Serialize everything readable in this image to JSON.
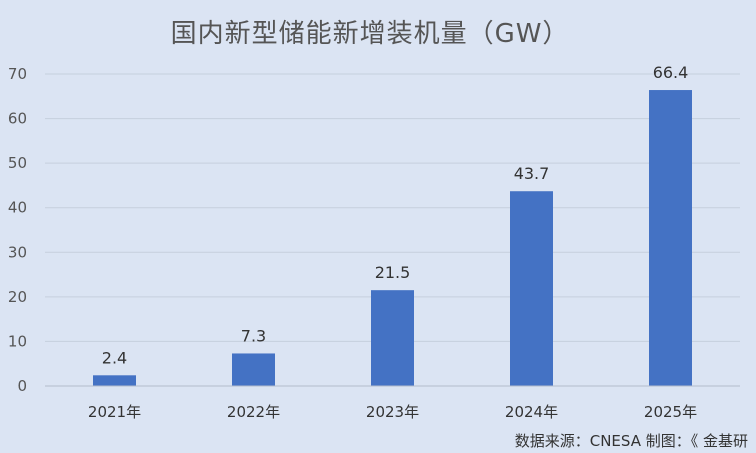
{
  "chart_data": {
    "type": "bar",
    "title": "国内新型储能新增装机量（GW）",
    "xlabel": "",
    "ylabel": "",
    "categories": [
      "2021年",
      "2022年",
      "2023年",
      "2024年",
      "2025年"
    ],
    "values": [
      2.4,
      7.3,
      21.5,
      43.7,
      66.4
    ],
    "ylim": [
      0,
      70
    ],
    "yticks": [
      0,
      10,
      20,
      30,
      40,
      50,
      60,
      70
    ],
    "grid": true,
    "legend": "none",
    "bar_color": "#4472c4"
  },
  "source": "数据来源：CNESA   制图：《 金基研"
}
